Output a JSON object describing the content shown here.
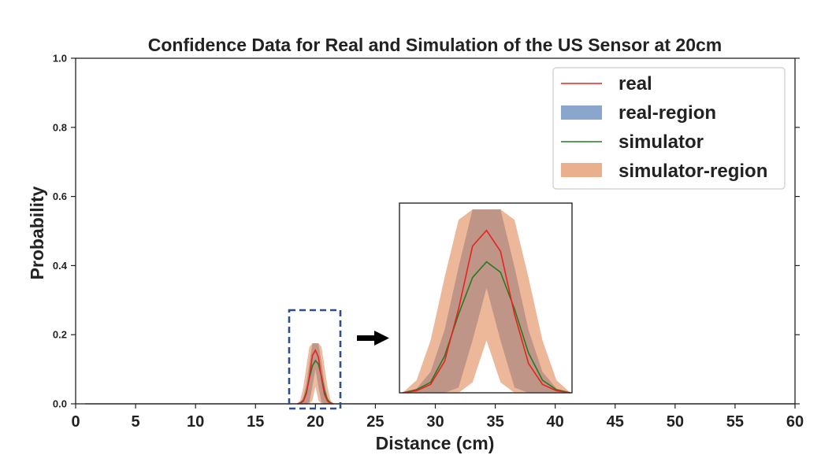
{
  "chart_data": {
    "type": "line",
    "title": "Confidence Data for Real and Simulation of the US Sensor at 20cm",
    "xlabel": "Distance (cm)",
    "ylabel": "Probability",
    "xlim": [
      0,
      60
    ],
    "ylim": [
      0,
      1.0
    ],
    "x_ticks": [
      "0",
      "5",
      "10",
      "15",
      "20",
      "25",
      "30",
      "35",
      "40",
      "45",
      "50",
      "55",
      "60"
    ],
    "y_ticks": [
      "0.0",
      "0.2",
      "0.4",
      "0.6",
      "0.8",
      "1.0"
    ],
    "grid": false,
    "legend_position": "top-right",
    "x": [
      18.5,
      18.75,
      19.0,
      19.25,
      19.5,
      19.75,
      20.0,
      20.25,
      20.5,
      20.75,
      21.0,
      21.25,
      21.5
    ],
    "series": [
      {
        "name": "real",
        "kind": "line",
        "color": "#e8231e",
        "values": [
          0.0,
          0.002,
          0.008,
          0.03,
          0.08,
          0.14,
          0.155,
          0.135,
          0.075,
          0.028,
          0.008,
          0.002,
          0.0
        ]
      },
      {
        "name": "real-region",
        "kind": "band",
        "color": "#8aa6cc",
        "lower": [
          0.0,
          0.0,
          0.0,
          0.0,
          0.005,
          0.05,
          0.1,
          0.05,
          0.005,
          0.0,
          0.0,
          0.0,
          0.0
        ],
        "upper": [
          0.0,
          0.004,
          0.02,
          0.06,
          0.12,
          0.175,
          0.175,
          0.175,
          0.12,
          0.06,
          0.02,
          0.004,
          0.0
        ]
      },
      {
        "name": "simulator",
        "kind": "line",
        "color": "#257b24",
        "values": [
          0.0,
          0.003,
          0.01,
          0.035,
          0.075,
          0.11,
          0.125,
          0.115,
          0.08,
          0.038,
          0.012,
          0.003,
          0.0
        ]
      },
      {
        "name": "simulator-region",
        "kind": "band",
        "color": "#eab08e",
        "lower": [
          0.0,
          0.0,
          0.0,
          0.0,
          0.0,
          0.01,
          0.05,
          0.01,
          0.0,
          0.0,
          0.0,
          0.0,
          0.0
        ],
        "upper": [
          0.0,
          0.012,
          0.05,
          0.11,
          0.165,
          0.175,
          0.175,
          0.175,
          0.165,
          0.11,
          0.05,
          0.012,
          0.0
        ]
      }
    ],
    "inset": {
      "source_xlim": [
        18,
        22
      ],
      "source_ylim": [
        0,
        0.2
      ]
    }
  }
}
